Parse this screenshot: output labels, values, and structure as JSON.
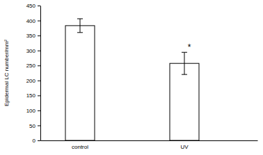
{
  "chart_data": {
    "type": "bar",
    "y_label": "Epidermal LC number/mm²",
    "categories": [
      "control",
      "UV"
    ],
    "values": [
      383,
      257
    ],
    "errors": [
      23,
      37
    ],
    "color": "#ffffff",
    "ylim": [
      0,
      450
    ],
    "yticks": [
      0,
      50,
      100,
      150,
      200,
      250,
      300,
      350,
      400,
      450
    ],
    "grid": false,
    "annotations": [
      {
        "category": "UV",
        "text": "*"
      }
    ]
  }
}
